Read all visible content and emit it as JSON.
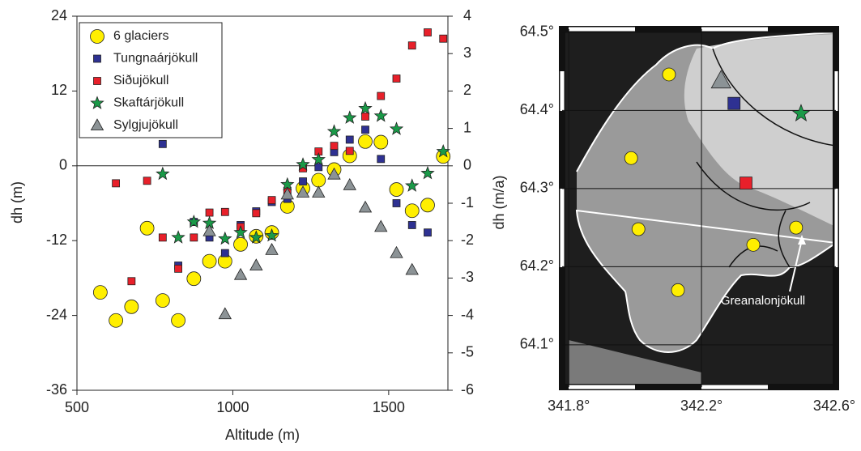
{
  "chart_data": [
    {
      "type": "scatter",
      "xlabel": "Altitude (m)",
      "ylabel": "dh (m)",
      "y2label": "dh (m/a)",
      "xlim": [
        500,
        1690
      ],
      "xticks": [
        500,
        1000,
        1500
      ],
      "ylim": [
        -36,
        24
      ],
      "yticks": [
        -36,
        -24,
        -12,
        0,
        12,
        24
      ],
      "y2lim": [
        -6,
        4
      ],
      "y2ticks": [
        -6,
        -5,
        -4,
        -3,
        -2,
        -1,
        0,
        1,
        2,
        3,
        4
      ],
      "legend": "upper left",
      "series": [
        {
          "name": "6 glaciers",
          "color": "#ffef00",
          "marker": "circle",
          "x": [
            575,
            625,
            675,
            725,
            775,
            825,
            875,
            925,
            975,
            1025,
            1075,
            1125,
            1175,
            1225,
            1275,
            1325,
            1375,
            1425,
            1475,
            1525,
            1575,
            1625,
            1675
          ],
          "values": [
            -20.3,
            -24.8,
            -22.6,
            -10,
            -21.6,
            -24.8,
            -18.1,
            -15.3,
            -15.3,
            -12.6,
            -11.3,
            -10.7,
            -6.5,
            -3.6,
            -2.3,
            -0.6,
            1.6,
            3.9,
            3.8,
            -3.8,
            -7.2,
            -6.3,
            1.5
          ]
        },
        {
          "name": "Tungnaárjökull",
          "color": "#2e3192",
          "marker": "square",
          "x": [
            775,
            825,
            875,
            925,
            975,
            1025,
            1075,
            1125,
            1175,
            1225,
            1275,
            1325,
            1375,
            1425,
            1475,
            1525,
            1575,
            1625
          ],
          "values": [
            3.5,
            -16,
            -9,
            -11.5,
            -14,
            -9.5,
            -7.3,
            -5.8,
            -5.3,
            -2.5,
            -0.2,
            2.2,
            4.2,
            5.8,
            1.1,
            -6,
            -9.5,
            -10.7
          ]
        },
        {
          "name": "Siðujökull",
          "color": "#e8202a",
          "marker": "square",
          "x": [
            625,
            675,
            725,
            775,
            825,
            875,
            925,
            975,
            1025,
            1075,
            1125,
            1175,
            1225,
            1275,
            1325,
            1375,
            1425,
            1475,
            1525,
            1575,
            1625,
            1675
          ],
          "values": [
            -2.8,
            -18.5,
            -2.4,
            -11.5,
            -16.5,
            -11.5,
            -7.5,
            -7.4,
            -9.8,
            -7.6,
            -5.5,
            -4,
            -0.4,
            2.3,
            3.2,
            2.4,
            7.9,
            11.2,
            14,
            19.3,
            21.4,
            20.4
          ]
        },
        {
          "name": "Skaftárjökull",
          "color": "#1a9a48",
          "marker": "star",
          "x": [
            775,
            825,
            875,
            925,
            975,
            1025,
            1075,
            1125,
            1175,
            1225,
            1275,
            1325,
            1375,
            1425,
            1475,
            1525,
            1575,
            1625,
            1675
          ],
          "values": [
            -1.3,
            -11.5,
            -9,
            -9.2,
            -11.7,
            -10.7,
            -11.5,
            -11.2,
            -3,
            0.2,
            1,
            5.5,
            7.7,
            9.2,
            8,
            5.9,
            -3.2,
            -1.2,
            2.3
          ]
        },
        {
          "name": "Sylgjujökull",
          "color": "#8c9396",
          "marker": "triangle",
          "x": [
            925,
            975,
            1025,
            1075,
            1125,
            1175,
            1225,
            1275,
            1325,
            1375,
            1425,
            1475,
            1525,
            1575
          ],
          "values": [
            -10.5,
            -23.8,
            -17.5,
            -16,
            -13.5,
            -4.6,
            -4.3,
            -4.3,
            -1.4,
            -3.1,
            -6.7,
            -9.8,
            -14,
            -16.7
          ]
        }
      ]
    },
    {
      "type": "map",
      "annotation": "Greanalonjökull",
      "grid": true,
      "xlim": [
        341.78,
        342.605
      ],
      "ylim": [
        64.046,
        64.504
      ],
      "xticks": [
        {
          "value": 341.8,
          "label": "341.8°"
        },
        {
          "value": 342.2,
          "label": "342.2°"
        },
        {
          "value": 342.6,
          "label": "342.6°"
        }
      ],
      "yticks": [
        {
          "value": 64.1,
          "label": "64.1°"
        },
        {
          "value": 64.2,
          "label": "64.2°"
        },
        {
          "value": 64.3,
          "label": "64.3°"
        },
        {
          "value": 64.4,
          "label": "64.4°"
        },
        {
          "value": 64.5,
          "label": "64.5°"
        }
      ],
      "series": [
        {
          "color": "#ffef00",
          "marker": "circle",
          "x": [
            342.102,
            341.988,
            342.01,
            342.129,
            342.356,
            342.485
          ],
          "values": [
            64.446,
            64.339,
            64.248,
            64.17,
            64.228,
            64.25
          ]
        },
        {
          "color": "#2e3192",
          "marker": "square",
          "x": [
            342.298
          ],
          "values": [
            64.409
          ]
        },
        {
          "color": "#e8202a",
          "marker": "square",
          "x": [
            342.334
          ],
          "values": [
            64.307
          ]
        },
        {
          "color": "#1a9a48",
          "marker": "star",
          "x": [
            342.5
          ],
          "values": [
            64.396
          ]
        },
        {
          "color": "#8c9396",
          "marker": "triangle",
          "x": [
            342.259
          ],
          "values": [
            64.438
          ]
        }
      ]
    }
  ]
}
